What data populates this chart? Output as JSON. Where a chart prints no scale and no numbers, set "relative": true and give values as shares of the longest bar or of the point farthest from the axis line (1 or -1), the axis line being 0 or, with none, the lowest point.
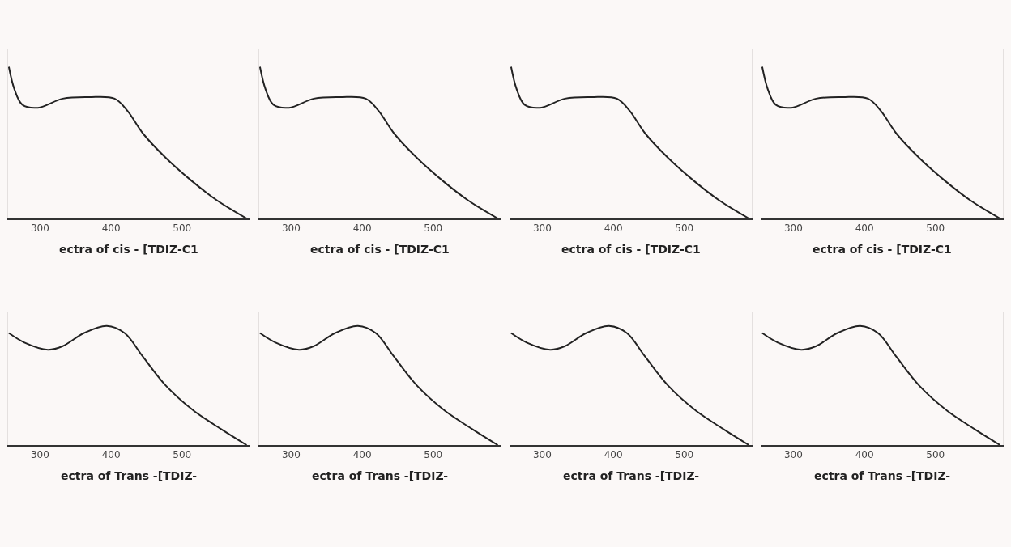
{
  "chart_data": [
    {
      "type": "line",
      "title": "ectra of cis - [TDIZ-C1",
      "relative": true,
      "xlim": [
        255,
        595
      ],
      "xticks": [
        300,
        400,
        500
      ],
      "color": "#222222",
      "x": [
        256,
        264,
        275,
        297,
        332,
        369,
        405,
        423,
        445,
        477,
        513,
        549,
        591
      ],
      "values": [
        1,
        0.85,
        0.75,
        0.73,
        0.79,
        0.8,
        0.79,
        0.71,
        0.56,
        0.4,
        0.25,
        0.12,
        0
      ]
    },
    {
      "type": "line",
      "title": "ectra of cis - [TDIZ-C1",
      "relative": true,
      "xlim": [
        255,
        595
      ],
      "xticks": [
        300,
        400,
        500
      ],
      "color": "#222222",
      "x": [
        256,
        264,
        275,
        297,
        332,
        369,
        405,
        423,
        445,
        477,
        513,
        549,
        591
      ],
      "values": [
        1,
        0.85,
        0.75,
        0.73,
        0.79,
        0.8,
        0.79,
        0.71,
        0.56,
        0.4,
        0.25,
        0.12,
        0
      ]
    },
    {
      "type": "line",
      "title": "ectra of cis - [TDIZ-C1",
      "relative": true,
      "xlim": [
        255,
        595
      ],
      "xticks": [
        300,
        400,
        500
      ],
      "color": "#222222",
      "x": [
        256,
        264,
        275,
        297,
        332,
        369,
        405,
        423,
        445,
        477,
        513,
        549,
        591
      ],
      "values": [
        1,
        0.85,
        0.75,
        0.73,
        0.79,
        0.8,
        0.79,
        0.71,
        0.56,
        0.4,
        0.25,
        0.12,
        0
      ]
    },
    {
      "type": "line",
      "title": "ectra of cis - [TDIZ-C1",
      "relative": true,
      "xlim": [
        255,
        595
      ],
      "xticks": [
        300,
        400,
        500
      ],
      "color": "#222222",
      "x": [
        256,
        264,
        275,
        297,
        332,
        369,
        405,
        423,
        445,
        477,
        513,
        549,
        591
      ],
      "values": [
        1,
        0.85,
        0.75,
        0.73,
        0.79,
        0.8,
        0.79,
        0.71,
        0.56,
        0.4,
        0.25,
        0.12,
        0
      ]
    },
    {
      "type": "line",
      "title": "ectra of Trans -[TDIZ-",
      "relative": true,
      "xlim": [
        255,
        595
      ],
      "xticks": [
        300,
        400,
        500
      ],
      "color": "#222222",
      "x": [
        256,
        278,
        311,
        332,
        362,
        394,
        419,
        445,
        477,
        516,
        556,
        591
      ],
      "values": [
        0.94,
        0.86,
        0.8,
        0.83,
        0.94,
        1,
        0.94,
        0.74,
        0.5,
        0.29,
        0.13,
        0
      ]
    },
    {
      "type": "line",
      "title": "ectra of Trans -[TDIZ-",
      "relative": true,
      "xlim": [
        255,
        595
      ],
      "xticks": [
        300,
        400,
        500
      ],
      "color": "#222222",
      "x": [
        256,
        278,
        311,
        332,
        362,
        394,
        419,
        445,
        477,
        516,
        556,
        591
      ],
      "values": [
        0.94,
        0.86,
        0.8,
        0.83,
        0.94,
        1,
        0.94,
        0.74,
        0.5,
        0.29,
        0.13,
        0
      ]
    },
    {
      "type": "line",
      "title": "ectra of Trans -[TDIZ-",
      "relative": true,
      "xlim": [
        255,
        595
      ],
      "xticks": [
        300,
        400,
        500
      ],
      "color": "#222222",
      "x": [
        256,
        278,
        311,
        332,
        362,
        394,
        419,
        445,
        477,
        516,
        556,
        591
      ],
      "values": [
        0.94,
        0.86,
        0.8,
        0.83,
        0.94,
        1,
        0.94,
        0.74,
        0.5,
        0.29,
        0.13,
        0
      ]
    },
    {
      "type": "line",
      "title": "ectra of Trans -[TDIZ-",
      "relative": true,
      "xlim": [
        255,
        595
      ],
      "xticks": [
        300,
        400,
        500
      ],
      "color": "#222222",
      "x": [
        256,
        278,
        311,
        332,
        362,
        394,
        419,
        445,
        477,
        516,
        556,
        591
      ],
      "values": [
        0.94,
        0.86,
        0.8,
        0.83,
        0.94,
        1,
        0.94,
        0.74,
        0.5,
        0.29,
        0.13,
        0
      ]
    }
  ]
}
